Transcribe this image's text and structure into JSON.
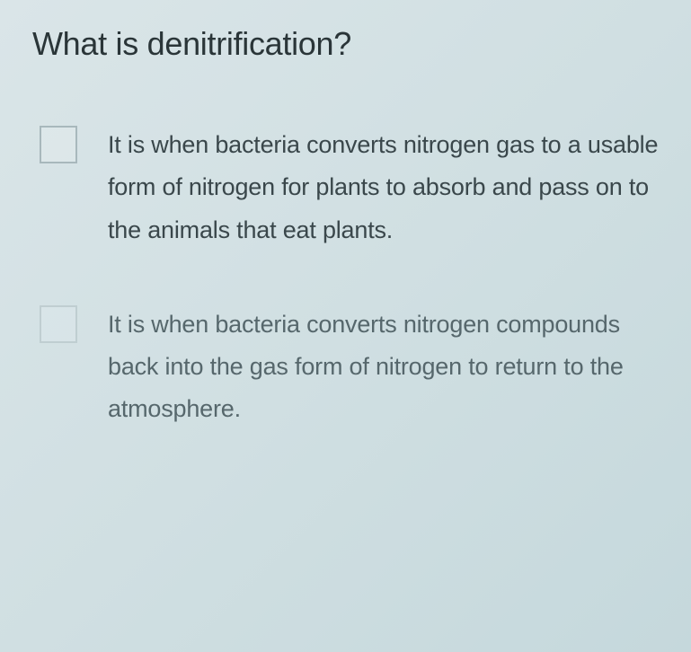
{
  "quiz": {
    "question": "What is denitrification?",
    "options": [
      {
        "text": "It is when bacteria converts nitrogen gas to a usable form of nitrogen for plants to absorb and pass on to the animals that eat plants.",
        "checked": false
      },
      {
        "text": "It is when bacteria converts nitrogen compounds back into the gas form of nitrogen to return to the atmosphere.",
        "checked": false
      }
    ]
  },
  "style": {
    "background_gradient_start": "#dae5e8",
    "background_gradient_end": "#c5d8dc",
    "title_color": "#2a3538",
    "title_fontsize": 36,
    "option_text_color": "#3a474b",
    "option_text_fontsize": 27,
    "checkbox_border_color": "#a8b8bc",
    "checkbox_size": 42
  }
}
